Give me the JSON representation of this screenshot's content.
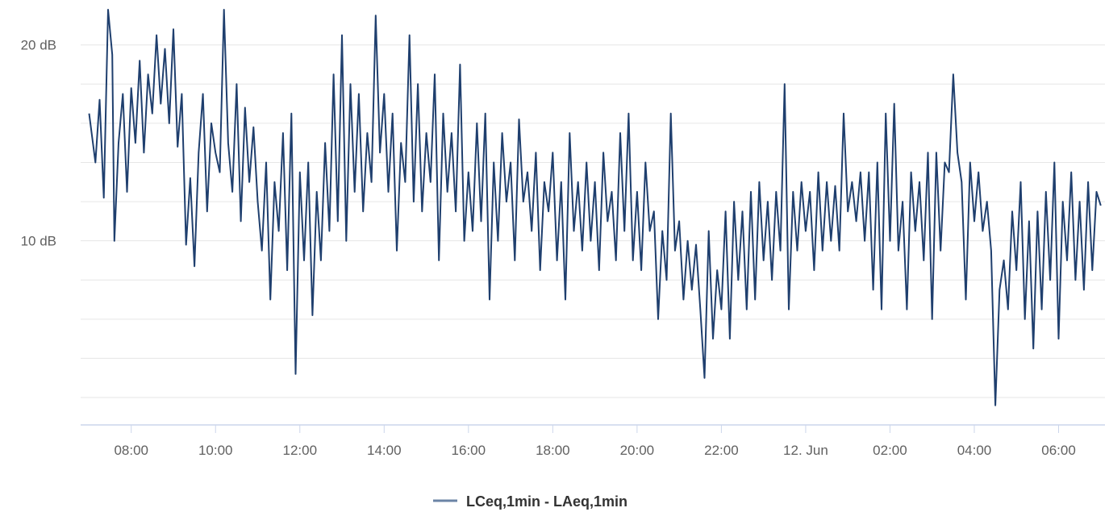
{
  "chart_data": {
    "type": "line",
    "title": "",
    "xlabel": "",
    "ylabel": "",
    "y_unit_suffix": " dB",
    "ylim": [
      0.6,
      21.8
    ],
    "y_ticks": [
      {
        "value": 20,
        "label": "20 dB"
      },
      {
        "value": 10,
        "label": "10 dB"
      }
    ],
    "y_gridlines": [
      2,
      4,
      6,
      8,
      10,
      12,
      14,
      16,
      18,
      20,
      22
    ],
    "xlim": [
      6.8,
      31.1
    ],
    "x_ticks": [
      {
        "value": 8,
        "label": "08:00"
      },
      {
        "value": 10,
        "label": "10:00"
      },
      {
        "value": 12,
        "label": "12:00"
      },
      {
        "value": 14,
        "label": "14:00"
      },
      {
        "value": 16,
        "label": "16:00"
      },
      {
        "value": 18,
        "label": "18:00"
      },
      {
        "value": 20,
        "label": "20:00"
      },
      {
        "value": 22,
        "label": "22:00"
      },
      {
        "value": 24,
        "label": "12. Jun"
      },
      {
        "value": 26,
        "label": "02:00"
      },
      {
        "value": 28,
        "label": "04:00"
      },
      {
        "value": 30,
        "label": "06:00"
      }
    ],
    "x_unit": "hours since 00:00 on the day before 12 Jun",
    "grid": "horizontal",
    "legend_position": "bottom-center",
    "series": [
      {
        "name": "LCeq,1min - LAeq,1min",
        "color": "#1f3f6e",
        "points": [
          [
            7.0,
            16.5
          ],
          [
            7.15,
            14.0
          ],
          [
            7.25,
            17.2
          ],
          [
            7.35,
            12.2
          ],
          [
            7.45,
            21.8
          ],
          [
            7.55,
            19.5
          ],
          [
            7.6,
            10.0
          ],
          [
            7.7,
            15.0
          ],
          [
            7.8,
            17.5
          ],
          [
            7.9,
            12.5
          ],
          [
            8.0,
            17.8
          ],
          [
            8.1,
            15.0
          ],
          [
            8.2,
            19.2
          ],
          [
            8.3,
            14.5
          ],
          [
            8.4,
            18.5
          ],
          [
            8.5,
            16.5
          ],
          [
            8.6,
            20.5
          ],
          [
            8.7,
            17.0
          ],
          [
            8.8,
            19.8
          ],
          [
            8.9,
            16.0
          ],
          [
            9.0,
            20.8
          ],
          [
            9.1,
            14.8
          ],
          [
            9.2,
            17.5
          ],
          [
            9.3,
            9.8
          ],
          [
            9.4,
            13.2
          ],
          [
            9.5,
            8.7
          ],
          [
            9.6,
            14.5
          ],
          [
            9.7,
            17.5
          ],
          [
            9.8,
            11.5
          ],
          [
            9.9,
            16.0
          ],
          [
            10.0,
            14.5
          ],
          [
            10.1,
            13.5
          ],
          [
            10.2,
            21.8
          ],
          [
            10.3,
            15.0
          ],
          [
            10.4,
            12.5
          ],
          [
            10.5,
            18.0
          ],
          [
            10.6,
            11.0
          ],
          [
            10.7,
            16.8
          ],
          [
            10.8,
            13.0
          ],
          [
            10.9,
            15.8
          ],
          [
            11.0,
            12.0
          ],
          [
            11.1,
            9.5
          ],
          [
            11.2,
            14.0
          ],
          [
            11.3,
            7.0
          ],
          [
            11.4,
            13.0
          ],
          [
            11.5,
            10.5
          ],
          [
            11.6,
            15.5
          ],
          [
            11.7,
            8.5
          ],
          [
            11.8,
            16.5
          ],
          [
            11.9,
            3.2
          ],
          [
            12.0,
            13.5
          ],
          [
            12.1,
            9.0
          ],
          [
            12.2,
            14.0
          ],
          [
            12.3,
            6.2
          ],
          [
            12.4,
            12.5
          ],
          [
            12.5,
            9.0
          ],
          [
            12.6,
            15.0
          ],
          [
            12.7,
            10.5
          ],
          [
            12.8,
            18.5
          ],
          [
            12.9,
            11.0
          ],
          [
            13.0,
            20.5
          ],
          [
            13.1,
            10.0
          ],
          [
            13.2,
            18.0
          ],
          [
            13.3,
            12.5
          ],
          [
            13.4,
            17.5
          ],
          [
            13.5,
            11.5
          ],
          [
            13.6,
            15.5
          ],
          [
            13.7,
            13.0
          ],
          [
            13.8,
            21.5
          ],
          [
            13.9,
            14.5
          ],
          [
            14.0,
            17.5
          ],
          [
            14.1,
            12.5
          ],
          [
            14.2,
            16.5
          ],
          [
            14.3,
            9.5
          ],
          [
            14.4,
            15.0
          ],
          [
            14.5,
            13.0
          ],
          [
            14.6,
            20.5
          ],
          [
            14.7,
            12.0
          ],
          [
            14.8,
            18.0
          ],
          [
            14.9,
            11.5
          ],
          [
            15.0,
            15.5
          ],
          [
            15.1,
            13.0
          ],
          [
            15.2,
            18.5
          ],
          [
            15.3,
            9.0
          ],
          [
            15.4,
            16.5
          ],
          [
            15.5,
            12.5
          ],
          [
            15.6,
            15.5
          ],
          [
            15.7,
            11.5
          ],
          [
            15.8,
            19.0
          ],
          [
            15.9,
            10.0
          ],
          [
            16.0,
            13.5
          ],
          [
            16.1,
            10.5
          ],
          [
            16.2,
            16.0
          ],
          [
            16.3,
            11.0
          ],
          [
            16.4,
            16.5
          ],
          [
            16.5,
            7.0
          ],
          [
            16.6,
            14.0
          ],
          [
            16.7,
            10.0
          ],
          [
            16.8,
            15.5
          ],
          [
            16.9,
            12.0
          ],
          [
            17.0,
            14.0
          ],
          [
            17.1,
            9.0
          ],
          [
            17.2,
            16.2
          ],
          [
            17.3,
            12.0
          ],
          [
            17.4,
            13.5
          ],
          [
            17.5,
            10.5
          ],
          [
            17.6,
            14.5
          ],
          [
            17.7,
            8.5
          ],
          [
            17.8,
            13.0
          ],
          [
            17.9,
            11.5
          ],
          [
            18.0,
            14.5
          ],
          [
            18.1,
            9.0
          ],
          [
            18.2,
            13.0
          ],
          [
            18.3,
            7.0
          ],
          [
            18.4,
            15.5
          ],
          [
            18.5,
            10.5
          ],
          [
            18.6,
            13.0
          ],
          [
            18.7,
            9.5
          ],
          [
            18.8,
            14.0
          ],
          [
            18.9,
            10.0
          ],
          [
            19.0,
            13.0
          ],
          [
            19.1,
            8.5
          ],
          [
            19.2,
            14.5
          ],
          [
            19.3,
            11.0
          ],
          [
            19.4,
            12.5
          ],
          [
            19.5,
            9.0
          ],
          [
            19.6,
            15.5
          ],
          [
            19.7,
            10.5
          ],
          [
            19.8,
            16.5
          ],
          [
            19.9,
            9.0
          ],
          [
            20.0,
            12.5
          ],
          [
            20.1,
            8.5
          ],
          [
            20.2,
            14.0
          ],
          [
            20.3,
            10.5
          ],
          [
            20.4,
            11.5
          ],
          [
            20.5,
            6.0
          ],
          [
            20.6,
            10.5
          ],
          [
            20.7,
            8.0
          ],
          [
            20.8,
            16.5
          ],
          [
            20.9,
            9.5
          ],
          [
            21.0,
            11.0
          ],
          [
            21.1,
            7.0
          ],
          [
            21.2,
            10.0
          ],
          [
            21.3,
            7.5
          ],
          [
            21.4,
            9.8
          ],
          [
            21.5,
            6.5
          ],
          [
            21.6,
            3.0
          ],
          [
            21.7,
            10.5
          ],
          [
            21.8,
            5.0
          ],
          [
            21.9,
            8.5
          ],
          [
            22.0,
            6.5
          ],
          [
            22.1,
            11.5
          ],
          [
            22.2,
            5.0
          ],
          [
            22.3,
            12.0
          ],
          [
            22.4,
            8.0
          ],
          [
            22.5,
            11.5
          ],
          [
            22.6,
            6.5
          ],
          [
            22.7,
            12.5
          ],
          [
            22.8,
            7.0
          ],
          [
            22.9,
            13.0
          ],
          [
            23.0,
            9.0
          ],
          [
            23.1,
            12.0
          ],
          [
            23.2,
            8.0
          ],
          [
            23.3,
            12.5
          ],
          [
            23.4,
            9.5
          ],
          [
            23.5,
            18.0
          ],
          [
            23.6,
            6.5
          ],
          [
            23.7,
            12.5
          ],
          [
            23.8,
            9.5
          ],
          [
            23.9,
            13.0
          ],
          [
            24.0,
            10.5
          ],
          [
            24.1,
            12.5
          ],
          [
            24.2,
            8.5
          ],
          [
            24.3,
            13.5
          ],
          [
            24.4,
            9.5
          ],
          [
            24.5,
            13.0
          ],
          [
            24.6,
            10.0
          ],
          [
            24.7,
            12.8
          ],
          [
            24.8,
            9.5
          ],
          [
            24.9,
            16.5
          ],
          [
            25.0,
            11.5
          ],
          [
            25.1,
            13.0
          ],
          [
            25.2,
            11.0
          ],
          [
            25.3,
            13.5
          ],
          [
            25.4,
            10.0
          ],
          [
            25.5,
            13.5
          ],
          [
            25.6,
            7.5
          ],
          [
            25.7,
            14.0
          ],
          [
            25.8,
            6.5
          ],
          [
            25.9,
            16.5
          ],
          [
            26.0,
            10.0
          ],
          [
            26.1,
            17.0
          ],
          [
            26.2,
            9.5
          ],
          [
            26.3,
            12.0
          ],
          [
            26.4,
            6.5
          ],
          [
            26.5,
            13.5
          ],
          [
            26.6,
            10.5
          ],
          [
            26.7,
            13.0
          ],
          [
            26.8,
            9.0
          ],
          [
            26.9,
            14.5
          ],
          [
            27.0,
            6.0
          ],
          [
            27.1,
            14.5
          ],
          [
            27.2,
            9.5
          ],
          [
            27.3,
            14.0
          ],
          [
            27.4,
            13.5
          ],
          [
            27.5,
            18.5
          ],
          [
            27.6,
            14.5
          ],
          [
            27.7,
            13.0
          ],
          [
            27.8,
            7.0
          ],
          [
            27.9,
            14.0
          ],
          [
            28.0,
            11.0
          ],
          [
            28.1,
            13.5
          ],
          [
            28.2,
            10.5
          ],
          [
            28.3,
            12.0
          ],
          [
            28.4,
            9.5
          ],
          [
            28.5,
            1.6
          ],
          [
            28.6,
            7.5
          ],
          [
            28.7,
            9.0
          ],
          [
            28.8,
            6.5
          ],
          [
            28.9,
            11.5
          ],
          [
            29.0,
            8.5
          ],
          [
            29.1,
            13.0
          ],
          [
            29.2,
            6.0
          ],
          [
            29.3,
            11.0
          ],
          [
            29.4,
            4.5
          ],
          [
            29.5,
            11.5
          ],
          [
            29.6,
            6.5
          ],
          [
            29.7,
            12.5
          ],
          [
            29.8,
            8.0
          ],
          [
            29.9,
            14.0
          ],
          [
            30.0,
            5.0
          ],
          [
            30.1,
            12.0
          ],
          [
            30.2,
            9.0
          ],
          [
            30.3,
            13.5
          ],
          [
            30.4,
            8.0
          ],
          [
            30.5,
            12.0
          ],
          [
            30.6,
            7.5
          ],
          [
            30.7,
            13.0
          ],
          [
            30.8,
            8.5
          ],
          [
            30.9,
            12.5
          ],
          [
            31.0,
            11.8
          ]
        ]
      }
    ]
  }
}
